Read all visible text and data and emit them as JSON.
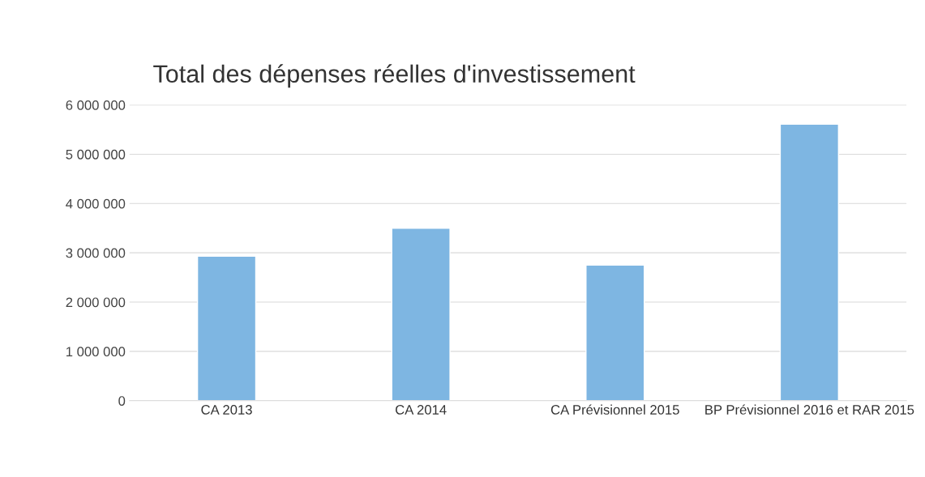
{
  "chart_data": {
    "type": "bar",
    "title": "Total des dépenses réelles d'investissement",
    "categories": [
      "CA 2013",
      "CA 2014",
      "CA Prévisionnel 2015",
      "BP Prévisionnel 2016 et RAR 2015"
    ],
    "values": [
      2930000,
      3500000,
      2750000,
      5610000
    ],
    "color": "#7eb6e2",
    "ylim": [
      0,
      6000000
    ],
    "yticks": [
      {
        "value": 0,
        "label": "0"
      },
      {
        "value": 1000000,
        "label": "1 000 000"
      },
      {
        "value": 2000000,
        "label": "2 000 000"
      },
      {
        "value": 3000000,
        "label": "3 000 000"
      },
      {
        "value": 4000000,
        "label": "4 000 000"
      },
      {
        "value": 5000000,
        "label": "5 000 000"
      },
      {
        "value": 6000000,
        "label": "6 000 000"
      }
    ],
    "grid": "y"
  }
}
